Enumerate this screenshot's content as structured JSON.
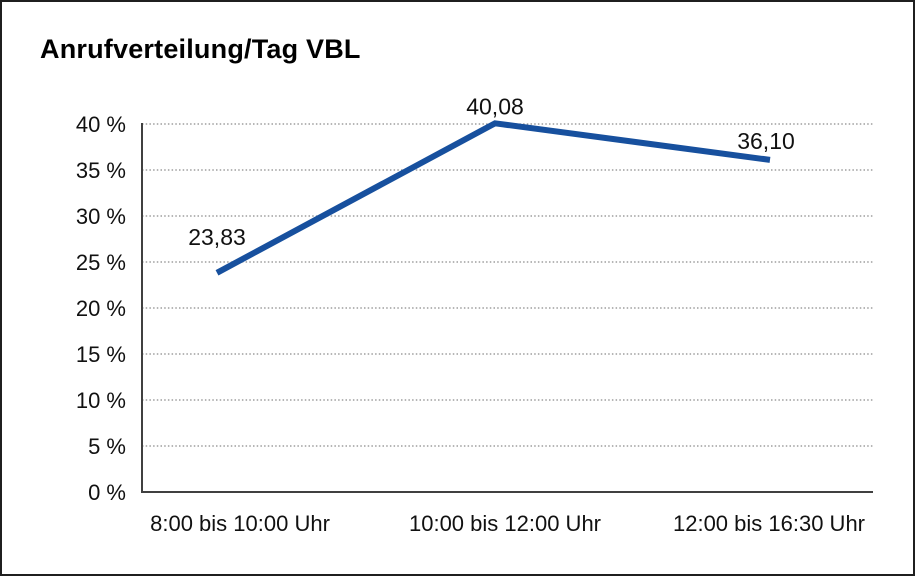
{
  "chart_data": {
    "type": "line",
    "title": "Anrufverteilung/Tag VBL",
    "categories": [
      "8:00 bis 10:00 Uhr",
      "10:00 bis 12:00 Uhr",
      "12:00 bis 16:30 Uhr"
    ],
    "values": [
      23.83,
      40.08,
      36.1
    ],
    "data_labels": [
      "23,83",
      "40,08",
      "36,10"
    ],
    "xlabel": "",
    "ylabel": "",
    "ylim": [
      0,
      40
    ],
    "y_tick_step": 5,
    "y_tick_labels": [
      "0 %",
      "5 %",
      "10 %",
      "15 %",
      "20 %",
      "25 %",
      "30 %",
      "35 %",
      "40 %"
    ],
    "grid": "horizontal-dotted",
    "legend_position": "none",
    "colors": {
      "line": "#17509e",
      "grid": "#8a8a8a",
      "axis": "#404040",
      "text": "#111111",
      "background": "#ffffff",
      "border": "#1f1f1f"
    }
  }
}
